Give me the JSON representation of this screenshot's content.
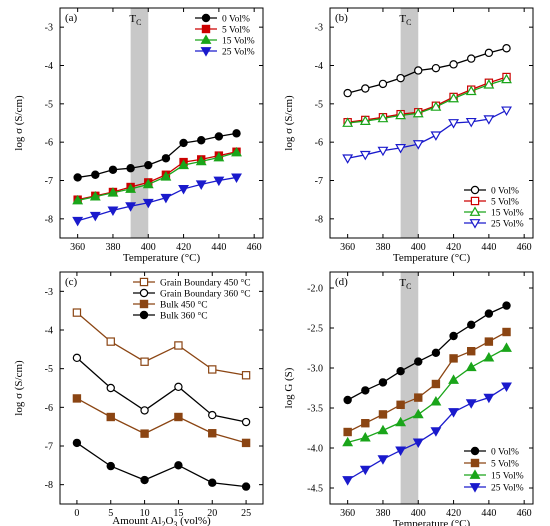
{
  "chart_data": [
    {
      "id": "a",
      "type": "line",
      "panel_label": "(a)",
      "xlabel": "Temperature (°C)",
      "ylabel": "log σ (S/cm)",
      "xlim": [
        350,
        465
      ],
      "ylim": [
        -8.5,
        -2.5
      ],
      "xticks": [
        360,
        380,
        400,
        420,
        440,
        460
      ],
      "yticks": [
        -8,
        -7,
        -6,
        -5,
        -4,
        -3
      ],
      "tc_band": [
        390,
        400
      ],
      "tc_label": "T",
      "tc_sub": "C",
      "legend": "top-right",
      "x": [
        360,
        370,
        380,
        390,
        400,
        410,
        420,
        430,
        440,
        450
      ],
      "series": [
        {
          "name": "0 Vol%",
          "color": "#000000",
          "marker": "circle",
          "fill": true,
          "values": [
            -6.92,
            -6.85,
            -6.72,
            -6.68,
            -6.6,
            -6.42,
            -6.02,
            -5.95,
            -5.85,
            -5.77
          ]
        },
        {
          "name": "5 Vol%",
          "color": "#cc0000",
          "marker": "square",
          "fill": true,
          "values": [
            -7.5,
            -7.4,
            -7.3,
            -7.17,
            -7.05,
            -6.85,
            -6.52,
            -6.45,
            -6.35,
            -6.25
          ]
        },
        {
          "name": "15 Vol%",
          "color": "#1aa51a",
          "marker": "triangle-up",
          "fill": true,
          "values": [
            -7.52,
            -7.42,
            -7.32,
            -7.22,
            -7.1,
            -6.9,
            -6.6,
            -6.5,
            -6.4,
            -6.27
          ]
        },
        {
          "name": "25 Vol%",
          "color": "#1a1acc",
          "marker": "triangle-down",
          "fill": true,
          "values": [
            -8.05,
            -7.92,
            -7.78,
            -7.67,
            -7.58,
            -7.45,
            -7.22,
            -7.1,
            -7.0,
            -6.92
          ]
        }
      ]
    },
    {
      "id": "b",
      "type": "line",
      "panel_label": "(b)",
      "xlabel": "Temperature (°C)",
      "ylabel": "log σ (S/cm)",
      "xlim": [
        350,
        465
      ],
      "ylim": [
        -8.5,
        -2.5
      ],
      "xticks": [
        360,
        380,
        400,
        420,
        440,
        460
      ],
      "yticks": [
        -8,
        -7,
        -6,
        -5,
        -4,
        -3
      ],
      "tc_band": [
        390,
        400
      ],
      "tc_label": "T",
      "tc_sub": "C",
      "legend": "bottom-right",
      "x": [
        360,
        370,
        380,
        390,
        400,
        410,
        420,
        430,
        440,
        450
      ],
      "series": [
        {
          "name": "0 Vol%",
          "color": "#000000",
          "marker": "circle",
          "fill": false,
          "values": [
            -4.72,
            -4.6,
            -4.48,
            -4.33,
            -4.13,
            -4.07,
            -3.97,
            -3.82,
            -3.67,
            -3.55
          ]
        },
        {
          "name": "5 Vol%",
          "color": "#cc0000",
          "marker": "square",
          "fill": false,
          "values": [
            -5.48,
            -5.42,
            -5.35,
            -5.27,
            -5.22,
            -5.05,
            -4.82,
            -4.63,
            -4.45,
            -4.3
          ]
        },
        {
          "name": "15 Vol%",
          "color": "#1aa51a",
          "marker": "triangle-up",
          "fill": false,
          "values": [
            -5.5,
            -5.45,
            -5.38,
            -5.3,
            -5.25,
            -5.08,
            -4.86,
            -4.67,
            -4.5,
            -4.36
          ]
        },
        {
          "name": "25 Vol%",
          "color": "#1a1acc",
          "marker": "triangle-down",
          "fill": false,
          "values": [
            -6.42,
            -6.33,
            -6.22,
            -6.15,
            -6.05,
            -5.82,
            -5.5,
            -5.47,
            -5.4,
            -5.17
          ]
        }
      ]
    },
    {
      "id": "c",
      "type": "line",
      "panel_label": "(c)",
      "xlabel_pre": "Amount Al",
      "xlabel_sub1": "2",
      "xlabel_mid": "O",
      "xlabel_sub2": "3",
      "xlabel_post": " (vol%)",
      "ylabel": "log σ (S/cm)",
      "xlim": [
        -2.5,
        27.5
      ],
      "ylim": [
        -8.5,
        -2.5
      ],
      "xticks": [
        0,
        5,
        10,
        15,
        20,
        25
      ],
      "yticks": [
        -8,
        -7,
        -6,
        -5,
        -4,
        -3
      ],
      "legend": "top-right",
      "x": [
        0,
        5,
        10,
        15,
        20,
        25
      ],
      "series": [
        {
          "name": "Grain Boundary 450 °C",
          "color": "#8b4513",
          "marker": "square",
          "fill": false,
          "values": [
            -3.55,
            -4.3,
            -4.82,
            -4.4,
            -5.02,
            -5.17
          ]
        },
        {
          "name": "Grain Boundary 360 °C",
          "color": "#000000",
          "marker": "circle",
          "fill": false,
          "values": [
            -4.72,
            -5.5,
            -6.08,
            -5.47,
            -6.2,
            -6.38
          ]
        },
        {
          "name": "Bulk 450 °C",
          "color": "#8b4513",
          "marker": "square",
          "fill": true,
          "values": [
            -5.77,
            -6.25,
            -6.68,
            -6.25,
            -6.67,
            -6.92
          ]
        },
        {
          "name": "Bulk 360 °C",
          "color": "#000000",
          "marker": "circle",
          "fill": true,
          "values": [
            -6.92,
            -7.52,
            -7.88,
            -7.5,
            -7.95,
            -8.05
          ]
        }
      ]
    },
    {
      "id": "d",
      "type": "line",
      "panel_label": "(d)",
      "xlabel": "Temperature (°C)",
      "ylabel": "log G (S)",
      "xlim": [
        350,
        465
      ],
      "ylim": [
        -4.7,
        -1.8
      ],
      "xticks": [
        360,
        380,
        400,
        420,
        440,
        460
      ],
      "yticks": [
        -4.5,
        -4.0,
        -3.5,
        -3.0,
        -2.5,
        -2.0
      ],
      "ytick_labels": [
        "-4.5",
        "-4.0",
        "-3.5",
        "-3.0",
        "-2.5",
        "-2.0"
      ],
      "tc_band": [
        390,
        400
      ],
      "tc_label": "T",
      "tc_sub": "C",
      "legend": "bottom-right",
      "x": [
        360,
        370,
        380,
        390,
        400,
        410,
        420,
        430,
        440,
        450
      ],
      "series": [
        {
          "name": "0 Vol%",
          "color": "#000000",
          "marker": "circle",
          "fill": true,
          "values": [
            -3.4,
            -3.28,
            -3.18,
            -3.04,
            -2.92,
            -2.81,
            -2.6,
            -2.46,
            -2.32,
            -2.22
          ]
        },
        {
          "name": "5 Vol%",
          "color": "#8b4513",
          "marker": "square",
          "fill": true,
          "values": [
            -3.8,
            -3.69,
            -3.58,
            -3.46,
            -3.37,
            -3.2,
            -2.88,
            -2.79,
            -2.67,
            -2.55
          ]
        },
        {
          "name": "15 Vol%",
          "color": "#1aa51a",
          "marker": "triangle-up",
          "fill": true,
          "values": [
            -3.93,
            -3.87,
            -3.78,
            -3.68,
            -3.58,
            -3.42,
            -3.15,
            -2.99,
            -2.87,
            -2.75
          ]
        },
        {
          "name": "25 Vol%",
          "color": "#1a1acc",
          "marker": "triangle-down",
          "fill": true,
          "values": [
            -4.4,
            -4.27,
            -4.14,
            -4.03,
            -3.93,
            -3.79,
            -3.55,
            -3.44,
            -3.37,
            -3.23
          ]
        }
      ]
    }
  ]
}
